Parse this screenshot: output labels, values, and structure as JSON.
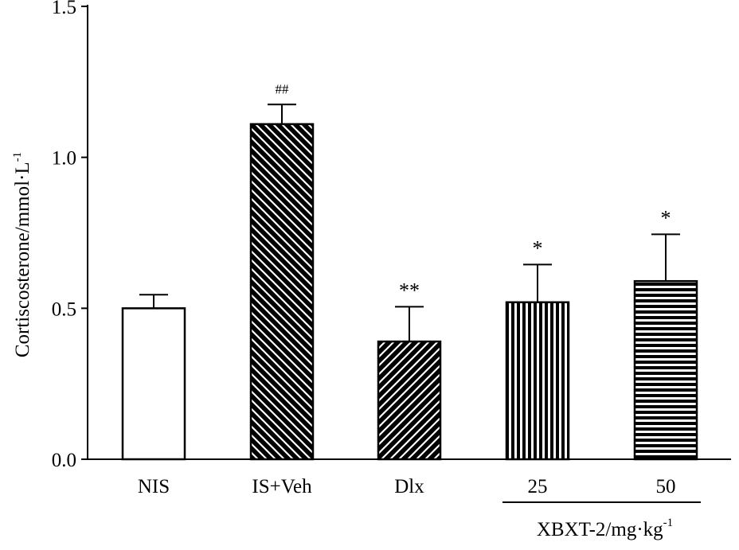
{
  "chart_data": {
    "type": "bar",
    "title": "",
    "ylabel": "Cortiscosterone/mmol·L",
    "ylabel_superscript": "-1",
    "xlabel": "",
    "ylim": [
      0.0,
      1.5
    ],
    "yticks": [
      "0.0",
      "0.5",
      "1.0",
      "1.5"
    ],
    "ytick_values": [
      0.0,
      0.5,
      1.0,
      1.5
    ],
    "categories": [
      "NIS",
      "IS+Veh",
      "Dlx",
      "25",
      "50"
    ],
    "values": [
      0.5,
      1.11,
      0.39,
      0.52,
      0.59
    ],
    "errors": [
      0.045,
      0.065,
      0.115,
      0.125,
      0.155
    ],
    "significance": [
      "",
      "##",
      "**",
      "*",
      "*"
    ],
    "fills": [
      "none",
      "diag-down",
      "diag-up",
      "vertical",
      "horizontal"
    ],
    "group": {
      "label": "XBXT-2/mg·kg",
      "label_superscript": "-1",
      "spans": [
        "25",
        "50"
      ]
    }
  }
}
